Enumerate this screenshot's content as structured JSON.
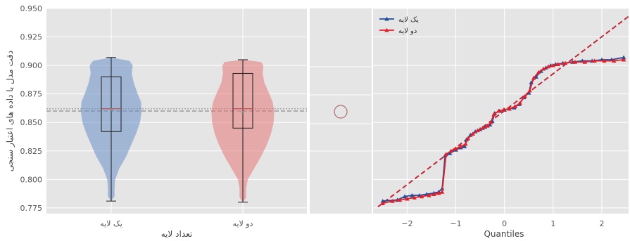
{
  "chart_data": [
    {
      "type": "violin",
      "xlabel": "تعداد لایه",
      "ylabel": "دقت مدل با داده های اعتبار سنجی",
      "ylim": [
        0.77,
        0.95
      ],
      "yticks": [
        "0.775",
        "0.800",
        "0.825",
        "0.850",
        "0.875",
        "0.900",
        "0.925",
        "0.950"
      ],
      "grid": true,
      "reference_lines": [
        0.862,
        0.86
      ],
      "categories": [
        "یک لایه",
        "دو لایه"
      ],
      "series": [
        {
          "color": "#6a8fc7",
          "min": 0.781,
          "q1": 0.842,
          "median": 0.862,
          "mean": 0.861,
          "q3": 0.89,
          "max": 0.907
        },
        {
          "color": "#e8787a",
          "min": 0.78,
          "q1": 0.845,
          "median": 0.862,
          "mean": 0.859,
          "q3": 0.893,
          "max": 0.905
        }
      ]
    },
    {
      "type": "line",
      "xlabel": "Quantiles",
      "ylabel": "",
      "xlim": [
        -2.7,
        2.55
      ],
      "ylim": [
        0.77,
        0.95
      ],
      "xticks": [
        "−2",
        "−1",
        "0",
        "1",
        "2"
      ],
      "grid": true,
      "legend": "top-left",
      "reference_line": {
        "x": [
          -2.6,
          2.55
        ],
        "y": [
          0.776,
          0.943
        ]
      },
      "series": [
        {
          "name": "یک لایه",
          "color": "#1f4e9a",
          "marker": "triangle",
          "points": [
            [
              -2.5,
              0.781
            ],
            [
              -2.2,
              0.782
            ],
            [
              -2.05,
              0.785
            ],
            [
              -1.9,
              0.786
            ],
            [
              -1.75,
              0.786
            ],
            [
              -1.6,
              0.787
            ],
            [
              -1.45,
              0.788
            ],
            [
              -1.35,
              0.789
            ],
            [
              -1.28,
              0.792
            ],
            [
              -1.22,
              0.821
            ],
            [
              -1.12,
              0.823
            ],
            [
              -1.0,
              0.826
            ],
            [
              -0.9,
              0.828
            ],
            [
              -0.82,
              0.829
            ],
            [
              -0.78,
              0.835
            ],
            [
              -0.7,
              0.839
            ],
            [
              -0.6,
              0.842
            ],
            [
              -0.5,
              0.844
            ],
            [
              -0.4,
              0.846
            ],
            [
              -0.3,
              0.848
            ],
            [
              -0.25,
              0.851
            ],
            [
              -0.2,
              0.858
            ],
            [
              -0.1,
              0.86
            ],
            [
              0.0,
              0.861
            ],
            [
              0.1,
              0.862
            ],
            [
              0.2,
              0.863
            ],
            [
              0.3,
              0.866
            ],
            [
              0.4,
              0.872
            ],
            [
              0.5,
              0.876
            ],
            [
              0.55,
              0.885
            ],
            [
              0.65,
              0.89
            ],
            [
              0.75,
              0.895
            ],
            [
              0.85,
              0.898
            ],
            [
              0.95,
              0.9
            ],
            [
              1.05,
              0.901
            ],
            [
              1.2,
              0.902
            ],
            [
              1.4,
              0.903
            ],
            [
              1.6,
              0.904
            ],
            [
              1.8,
              0.904
            ],
            [
              2.0,
              0.905
            ],
            [
              2.2,
              0.905
            ],
            [
              2.45,
              0.907
            ]
          ]
        },
        {
          "name": "دو لایه",
          "color": "#e3202a",
          "marker": "triangle",
          "points": [
            [
              -2.5,
              0.779
            ],
            [
              -2.3,
              0.781
            ],
            [
              -2.15,
              0.782
            ],
            [
              -2.0,
              0.783
            ],
            [
              -1.85,
              0.784
            ],
            [
              -1.7,
              0.785
            ],
            [
              -1.55,
              0.786
            ],
            [
              -1.45,
              0.787
            ],
            [
              -1.35,
              0.788
            ],
            [
              -1.28,
              0.789
            ],
            [
              -1.2,
              0.822
            ],
            [
              -1.1,
              0.825
            ],
            [
              -1.0,
              0.827
            ],
            [
              -0.9,
              0.829
            ],
            [
              -0.8,
              0.831
            ],
            [
              -0.75,
              0.836
            ],
            [
              -0.65,
              0.84
            ],
            [
              -0.55,
              0.843
            ],
            [
              -0.45,
              0.845
            ],
            [
              -0.35,
              0.847
            ],
            [
              -0.28,
              0.85
            ],
            [
              -0.22,
              0.857
            ],
            [
              -0.12,
              0.86
            ],
            [
              -0.02,
              0.861
            ],
            [
              0.1,
              0.862
            ],
            [
              0.22,
              0.864
            ],
            [
              0.32,
              0.867
            ],
            [
              0.42,
              0.873
            ],
            [
              0.52,
              0.878
            ],
            [
              0.6,
              0.889
            ],
            [
              0.7,
              0.894
            ],
            [
              0.8,
              0.897
            ],
            [
              0.9,
              0.899
            ],
            [
              1.0,
              0.9
            ],
            [
              1.1,
              0.901
            ],
            [
              1.25,
              0.902
            ],
            [
              1.45,
              0.903
            ],
            [
              1.65,
              0.903
            ],
            [
              1.85,
              0.904
            ],
            [
              2.05,
              0.904
            ],
            [
              2.25,
              0.904
            ],
            [
              2.45,
              0.905
            ]
          ]
        }
      ]
    }
  ]
}
